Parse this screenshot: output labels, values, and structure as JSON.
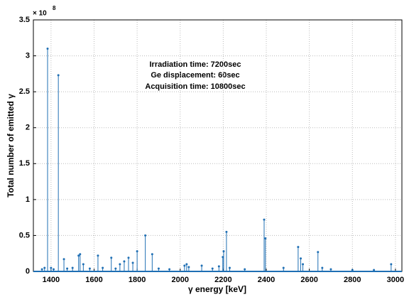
{
  "chart_data": {
    "type": "stem",
    "annotations": [
      "Irradiation time: 7200sec",
      "Ge displacement: 60sec",
      "Acquisition time: 10800sec"
    ],
    "x_label": "γ energy [keV]",
    "y_label": "Total number of emitted γ",
    "y_multiplier": "× 10",
    "y_multiplier_power": "8",
    "color": "#1f6fb4",
    "grid": true,
    "xlim": [
      1318,
      3030
    ],
    "xticks": [
      1400,
      1600,
      1800,
      2000,
      2200,
      2400,
      2600,
      2800,
      3000
    ],
    "ylim": [
      0,
      3.5
    ],
    "yticks": [
      0,
      0.5,
      1,
      1.5,
      2,
      2.5,
      3,
      3.5
    ],
    "x": [
      1358,
      1370,
      1384,
      1400,
      1412,
      1434,
      1460,
      1475,
      1500,
      1528,
      1535,
      1550,
      1580,
      1618,
      1640,
      1680,
      1700,
      1720,
      1740,
      1760,
      1780,
      1800,
      1838,
      1870,
      1900,
      1950,
      2020,
      2030,
      2040,
      2100,
      2150,
      2180,
      2198,
      2202,
      2215,
      2230,
      2300,
      2390,
      2396,
      2480,
      2548,
      2560,
      2570,
      2640,
      2660,
      2700,
      2800,
      2900,
      2980
    ],
    "values": [
      0.03,
      0.05,
      3.1,
      0.05,
      0.03,
      2.73,
      0.17,
      0.04,
      0.05,
      0.22,
      0.24,
      0.1,
      0.04,
      0.22,
      0.05,
      0.19,
      0.04,
      0.1,
      0.14,
      0.19,
      0.12,
      0.28,
      0.5,
      0.24,
      0.04,
      0.03,
      0.08,
      0.1,
      0.06,
      0.08,
      0.04,
      0.07,
      0.2,
      0.28,
      0.55,
      0.05,
      0.03,
      0.72,
      0.46,
      0.05,
      0.34,
      0.18,
      0.1,
      0.27,
      0.05,
      0.03,
      0.02,
      0.02,
      0.1
    ]
  }
}
